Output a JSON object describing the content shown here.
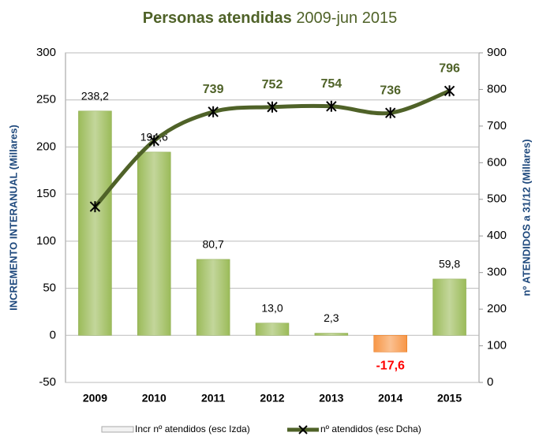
{
  "chart_data": {
    "type": "bar",
    "title": "Personas atendidas",
    "subtitle": "2009-jun 2015",
    "ylabel": "INCREMENTO INTERANUAL (Millares)",
    "y2label": "nº ATENDIDOS a 31/12 (Millares)",
    "categories": [
      "2009",
      "2010",
      "2011",
      "2012",
      "2013",
      "2014",
      "2015"
    ],
    "series": [
      {
        "name": "Incr nº atendidos (esc Izda)",
        "type": "bar",
        "axis": "y",
        "color": "#9bbb59",
        "negative_color": "#f79646",
        "values": [
          238.2,
          194.6,
          80.7,
          13.0,
          2.3,
          -17.6,
          59.8
        ],
        "value_labels": [
          "238,2",
          "194,6",
          "80,7",
          "13,0",
          "2,3",
          "-17,6",
          "59,8"
        ]
      },
      {
        "name": "nº atendidos (esc Dcha)",
        "type": "line",
        "axis": "y2",
        "color": "#4f6228",
        "values": [
          480,
          660,
          739,
          752,
          754,
          736,
          796
        ],
        "value_labels": [
          null,
          null,
          "739",
          "752",
          "754",
          "736",
          "796"
        ]
      }
    ],
    "ylim": [
      -50,
      300
    ],
    "yticks": [
      -50,
      0,
      50,
      100,
      150,
      200,
      250,
      300
    ],
    "y2lim": [
      0,
      900
    ],
    "y2ticks": [
      0,
      100,
      200,
      300,
      400,
      500,
      600,
      700,
      800,
      900
    ],
    "grid": true
  }
}
